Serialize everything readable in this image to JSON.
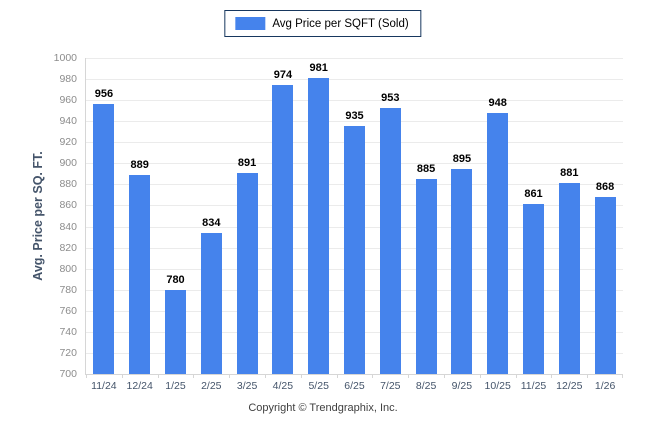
{
  "legend": {
    "label": "Avg Price per SQFT (Sold)",
    "swatch_color": "#4583EC"
  },
  "footer": {
    "text": "Copyright © Trendgraphix, Inc."
  },
  "chart_data": {
    "type": "bar",
    "title": "",
    "series_name": "Avg Price per SQFT (Sold)",
    "categories": [
      "11/24",
      "12/24",
      "1/25",
      "2/25",
      "3/25",
      "4/25",
      "5/25",
      "6/25",
      "7/25",
      "8/25",
      "9/25",
      "10/25",
      "11/25",
      "12/25",
      "1/26"
    ],
    "values": [
      956,
      889,
      780,
      834,
      891,
      974,
      981,
      935,
      953,
      885,
      895,
      948,
      861,
      881,
      868
    ],
    "xlabel": "",
    "ylabel": "Avg. Price per SQ. FT.",
    "ylim": [
      700,
      1000
    ],
    "ytick_step": 20,
    "grid": true,
    "legend_position": "top",
    "bar_color": "#4583EC",
    "value_labels": true
  },
  "colors": {
    "bar": "#4583EC",
    "legend_border": "#17375E",
    "gridline": "#ebebeb",
    "axis_line": "#d6d6d6",
    "ytick_text": "#8c8c8c",
    "xtick_text": "#44546A",
    "value_text": "#000000"
  }
}
